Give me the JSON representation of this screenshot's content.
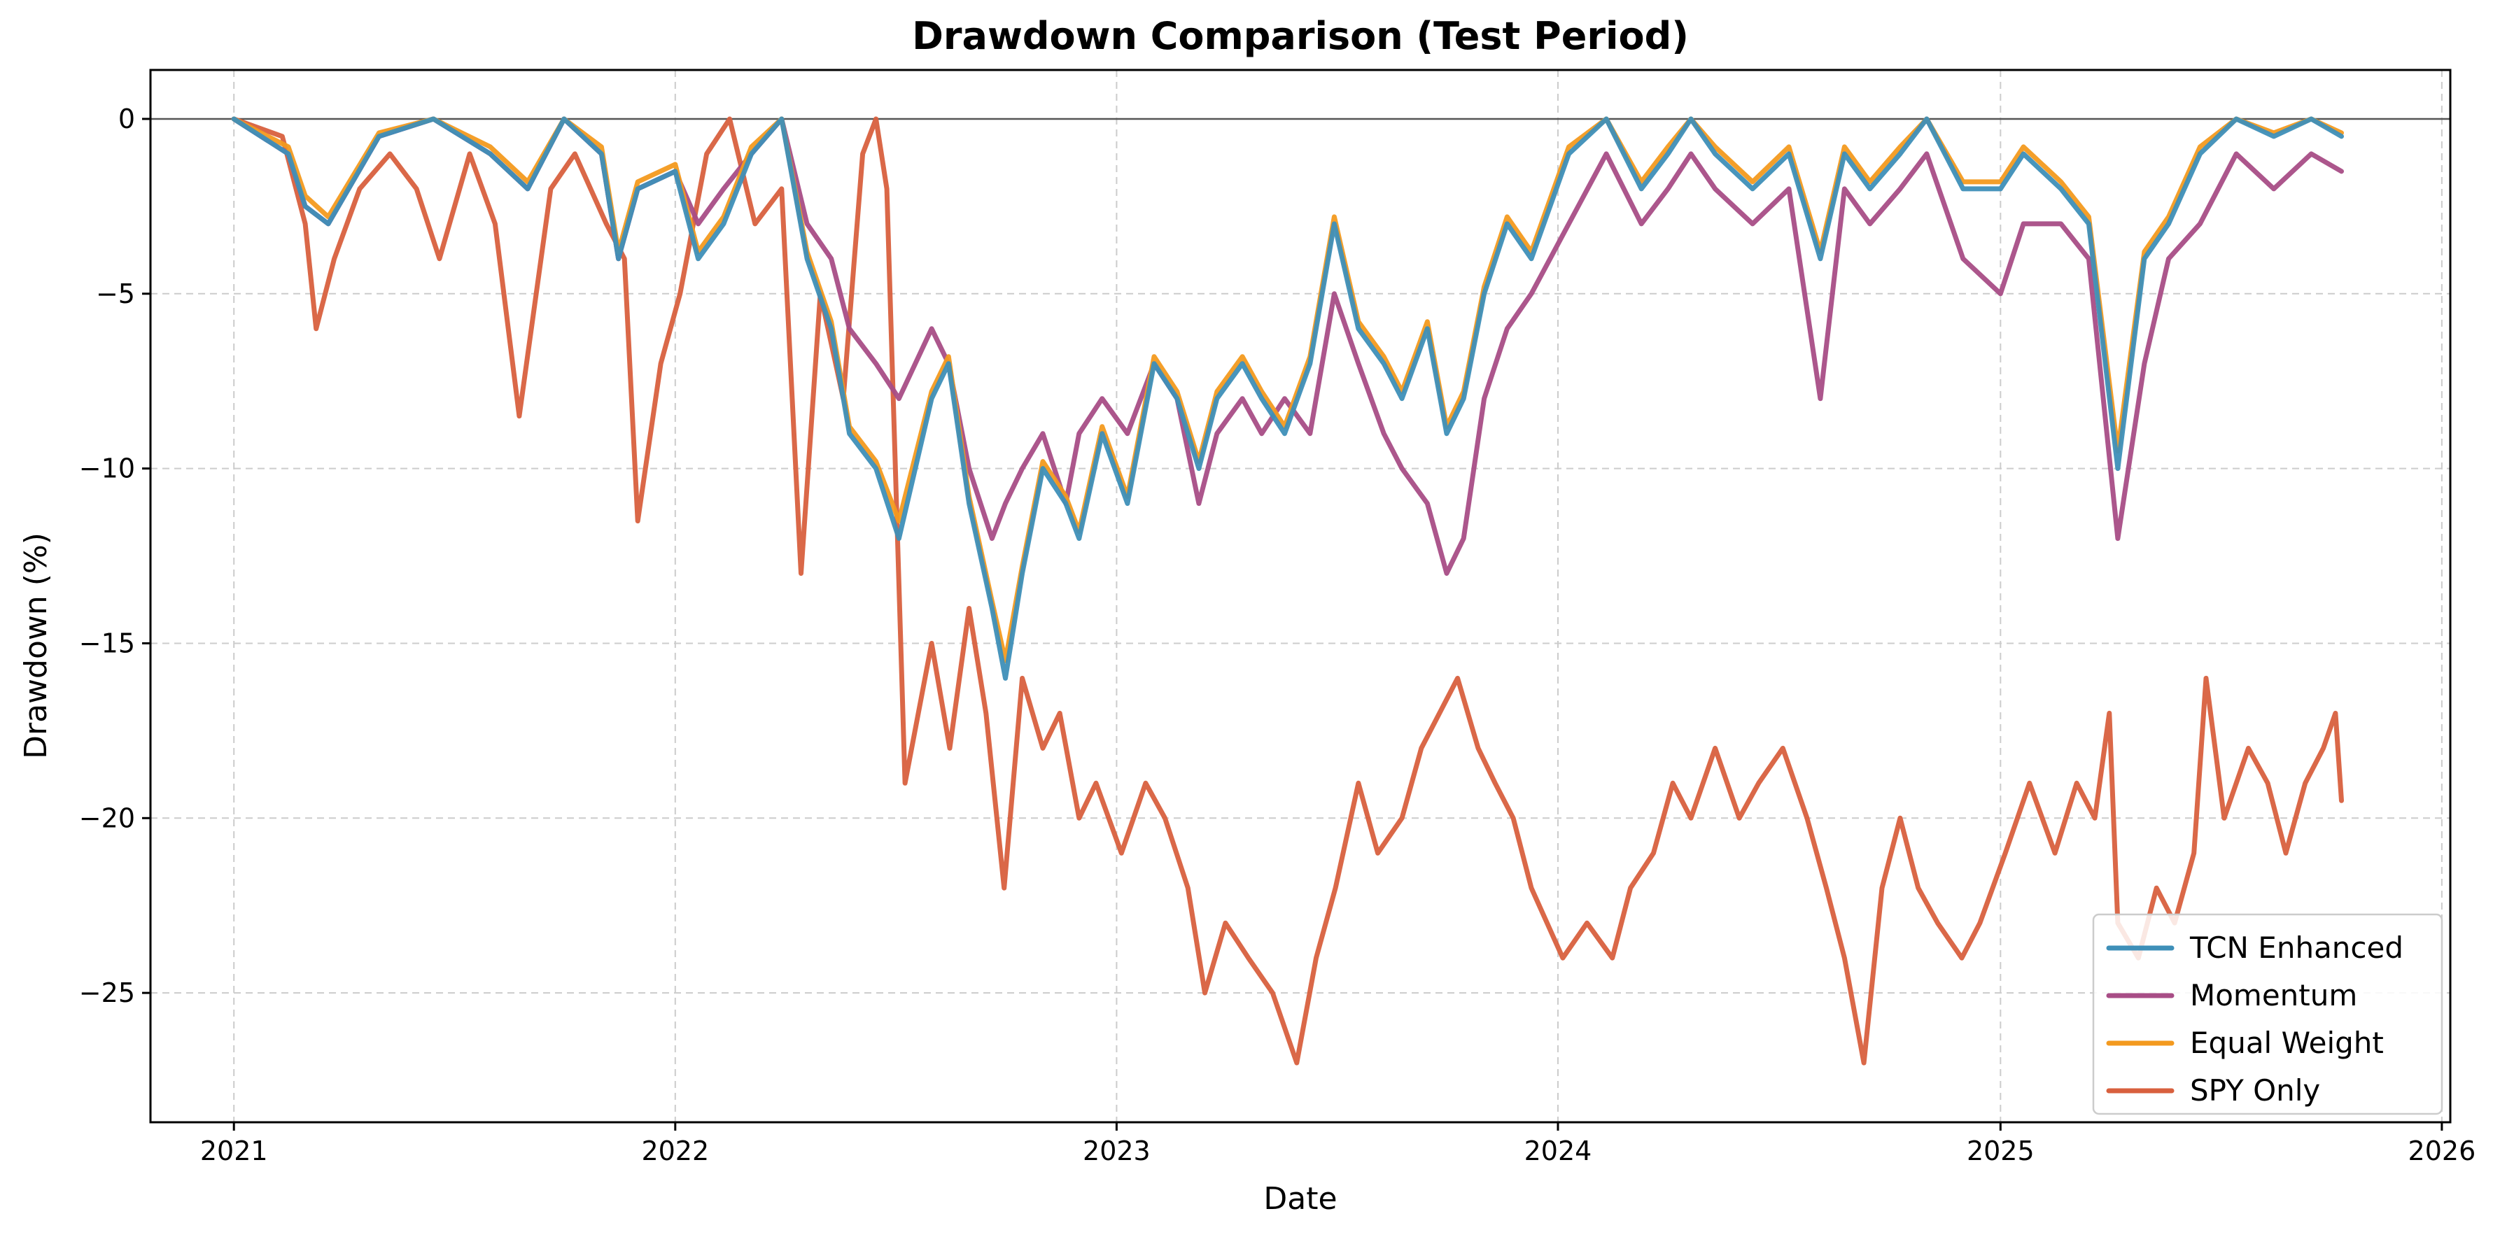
{
  "chart_data": {
    "type": "line",
    "title": "Drawdown Comparison (Test Period)",
    "xlabel": "Date",
    "ylabel": "Drawdown (%)",
    "xlim": [
      "2020-10-24",
      "2026-01-08"
    ],
    "ylim": [
      -28.7,
      1.4
    ],
    "x_ticks": [
      "2021",
      "2022",
      "2023",
      "2024",
      "2025",
      "2026"
    ],
    "y_ticks": [
      0,
      -5,
      -10,
      -15,
      -20,
      -25
    ],
    "y_tick_labels": [
      "0",
      "−5",
      "−10",
      "−15",
      "−20",
      "−25"
    ],
    "grid": true,
    "legend_position": "bottom-right",
    "zero_line": true,
    "series": [
      {
        "name": "TCN Enhanced",
        "color": "#3e8fb8",
        "x": [
          "2021-01-01",
          "2021-02-15",
          "2021-03-01",
          "2021-03-20",
          "2021-05-01",
          "2021-06-15",
          "2021-08-01",
          "2021-09-01",
          "2021-10-01",
          "2021-11-01",
          "2021-11-15",
          "2021-12-01",
          "2022-01-01",
          "2022-01-20",
          "2022-02-10",
          "2022-03-05",
          "2022-03-30",
          "2022-04-20",
          "2022-05-10",
          "2022-05-25",
          "2022-06-16",
          "2022-07-05",
          "2022-08-01",
          "2022-08-15",
          "2022-09-01",
          "2022-09-20",
          "2022-10-01",
          "2022-10-15",
          "2022-11-01",
          "2022-11-20",
          "2022-12-01",
          "2022-12-20",
          "2023-01-10",
          "2023-02-01",
          "2023-02-20",
          "2023-03-10",
          "2023-03-25",
          "2023-04-15",
          "2023-05-01",
          "2023-05-20",
          "2023-06-10",
          "2023-06-30",
          "2023-07-20",
          "2023-08-10",
          "2023-08-25",
          "2023-09-15",
          "2023-10-01",
          "2023-10-15",
          "2023-11-01",
          "2023-11-20",
          "2023-12-10",
          "2024-01-10",
          "2024-02-10",
          "2024-03-10",
          "2024-04-01",
          "2024-04-20",
          "2024-05-10",
          "2024-06-10",
          "2024-07-10",
          "2024-08-05",
          "2024-08-25",
          "2024-09-15",
          "2024-10-10",
          "2024-11-01",
          "2024-12-01",
          "2025-01-01",
          "2025-01-20",
          "2025-02-20",
          "2025-03-15",
          "2025-04-08",
          "2025-04-30",
          "2025-05-20",
          "2025-06-15",
          "2025-07-15",
          "2025-08-15",
          "2025-09-15",
          "2025-10-10"
        ],
        "values": [
          0,
          -1,
          -2.5,
          -3,
          -0.5,
          0,
          -1,
          -2,
          0,
          -1,
          -4,
          -2,
          -1.5,
          -4,
          -3,
          -1,
          0,
          -4,
          -6,
          -9,
          -10,
          -12,
          -8,
          -7,
          -11,
          -14,
          -16,
          -13,
          -10,
          -11,
          -12,
          -9,
          -11,
          -7,
          -8,
          -10,
          -8,
          -7,
          -8,
          -9,
          -7,
          -3,
          -6,
          -7,
          -8,
          -6,
          -9,
          -8,
          -5,
          -3,
          -4,
          -1,
          0,
          -2,
          -1,
          0,
          -1,
          -2,
          -1,
          -4,
          -1,
          -2,
          -1,
          0,
          -2,
          -2,
          -1,
          -2,
          -3,
          -10,
          -4,
          -3,
          -1,
          0,
          -0.5,
          0,
          -0.5
        ]
      },
      {
        "name": "Momentum",
        "color": "#a84d86",
        "x": [
          "2021-01-01",
          "2021-02-15",
          "2021-03-01",
          "2021-03-20",
          "2021-05-01",
          "2021-06-15",
          "2021-08-01",
          "2021-09-01",
          "2021-10-01",
          "2021-11-01",
          "2021-11-15",
          "2021-12-01",
          "2022-01-01",
          "2022-01-20",
          "2022-02-10",
          "2022-03-05",
          "2022-03-30",
          "2022-04-20",
          "2022-05-10",
          "2022-05-25",
          "2022-06-16",
          "2022-07-05",
          "2022-08-01",
          "2022-08-15",
          "2022-09-01",
          "2022-09-20",
          "2022-10-01",
          "2022-10-15",
          "2022-11-01",
          "2022-11-20",
          "2022-12-01",
          "2022-12-20",
          "2023-01-10",
          "2023-02-01",
          "2023-02-20",
          "2023-03-10",
          "2023-03-25",
          "2023-04-15",
          "2023-05-01",
          "2023-05-20",
          "2023-06-10",
          "2023-06-30",
          "2023-07-20",
          "2023-08-10",
          "2023-08-25",
          "2023-09-15",
          "2023-10-01",
          "2023-10-15",
          "2023-11-01",
          "2023-11-20",
          "2023-12-10",
          "2024-01-10",
          "2024-02-10",
          "2024-03-10",
          "2024-04-01",
          "2024-04-20",
          "2024-05-10",
          "2024-06-10",
          "2024-07-10",
          "2024-08-05",
          "2024-08-25",
          "2024-09-15",
          "2024-10-10",
          "2024-11-01",
          "2024-12-01",
          "2025-01-01",
          "2025-01-20",
          "2025-02-20",
          "2025-03-15",
          "2025-04-08",
          "2025-04-30",
          "2025-05-20",
          "2025-06-15",
          "2025-07-15",
          "2025-08-15",
          "2025-09-15",
          "2025-10-10"
        ],
        "values": [
          0,
          -1,
          -2.5,
          -3,
          -0.5,
          0,
          -1,
          -2,
          0,
          -1,
          -4,
          -2,
          -1.5,
          -3,
          -2,
          -1,
          0,
          -3,
          -4,
          -6,
          -7,
          -8,
          -6,
          -7,
          -10,
          -12,
          -11,
          -10,
          -9,
          -11,
          -9,
          -8,
          -9,
          -7,
          -8,
          -11,
          -9,
          -8,
          -9,
          -8,
          -9,
          -5,
          -7,
          -9,
          -10,
          -11,
          -13,
          -12,
          -8,
          -6,
          -5,
          -3,
          -1,
          -3,
          -2,
          -1,
          -2,
          -3,
          -2,
          -8,
          -2,
          -3,
          -2,
          -1,
          -4,
          -5,
          -3,
          -3,
          -4,
          -12,
          -7,
          -4,
          -3,
          -1,
          -2,
          -1,
          -1.5
        ]
      },
      {
        "name": "Equal Weight",
        "color": "#f39a1f",
        "x": [
          "2021-01-01",
          "2021-02-15",
          "2021-03-01",
          "2021-03-20",
          "2021-05-01",
          "2021-06-15",
          "2021-08-01",
          "2021-09-01",
          "2021-10-01",
          "2021-11-01",
          "2021-11-15",
          "2021-12-01",
          "2022-01-01",
          "2022-01-20",
          "2022-02-10",
          "2022-03-05",
          "2022-03-30",
          "2022-04-20",
          "2022-05-10",
          "2022-05-25",
          "2022-06-16",
          "2022-07-05",
          "2022-08-01",
          "2022-08-15",
          "2022-09-01",
          "2022-09-20",
          "2022-10-01",
          "2022-10-15",
          "2022-11-01",
          "2022-11-20",
          "2022-12-01",
          "2022-12-20",
          "2023-01-10",
          "2023-02-01",
          "2023-02-20",
          "2023-03-10",
          "2023-03-25",
          "2023-04-15",
          "2023-05-01",
          "2023-05-20",
          "2023-06-10",
          "2023-06-30",
          "2023-07-20",
          "2023-08-10",
          "2023-08-25",
          "2023-09-15",
          "2023-10-01",
          "2023-10-15",
          "2023-11-01",
          "2023-11-20",
          "2023-12-10",
          "2024-01-10",
          "2024-02-10",
          "2024-03-10",
          "2024-04-01",
          "2024-04-20",
          "2024-05-10",
          "2024-06-10",
          "2024-07-10",
          "2024-08-05",
          "2024-08-25",
          "2024-09-15",
          "2024-10-10",
          "2024-11-01",
          "2024-12-01",
          "2025-01-01",
          "2025-01-20",
          "2025-02-20",
          "2025-03-15",
          "2025-04-08",
          "2025-04-30",
          "2025-05-20",
          "2025-06-15",
          "2025-07-15",
          "2025-08-15",
          "2025-09-15",
          "2025-10-10"
        ],
        "values": [
          0,
          -0.8,
          -2.2,
          -2.8,
          -0.4,
          0,
          -0.8,
          -1.8,
          0,
          -0.8,
          -3.8,
          -1.8,
          -1.3,
          -3.8,
          -2.8,
          -0.8,
          0,
          -3.8,
          -5.8,
          -8.8,
          -9.8,
          -11.5,
          -7.8,
          -6.8,
          -10.8,
          -13.8,
          -15.5,
          -12.8,
          -9.8,
          -10.8,
          -11.8,
          -8.8,
          -10.8,
          -6.8,
          -7.8,
          -9.8,
          -7.8,
          -6.8,
          -7.8,
          -8.8,
          -6.8,
          -2.8,
          -5.8,
          -6.8,
          -7.8,
          -5.8,
          -8.8,
          -7.8,
          -4.8,
          -2.8,
          -3.8,
          -0.8,
          0,
          -1.8,
          -0.8,
          0,
          -0.8,
          -1.8,
          -0.8,
          -3.8,
          -0.8,
          -1.8,
          -0.8,
          0,
          -1.8,
          -1.8,
          -0.8,
          -1.8,
          -2.8,
          -9.5,
          -3.8,
          -2.8,
          -0.8,
          0,
          -0.4,
          0,
          -0.4
        ]
      },
      {
        "name": "SPY Only",
        "color": "#d8603e",
        "x": [
          "2021-01-01",
          "2021-02-10",
          "2021-03-01",
          "2021-03-10",
          "2021-03-25",
          "2021-04-15",
          "2021-05-10",
          "2021-06-01",
          "2021-06-20",
          "2021-07-15",
          "2021-08-05",
          "2021-08-25",
          "2021-09-20",
          "2021-10-10",
          "2021-11-05",
          "2021-11-20",
          "2021-12-01",
          "2021-12-20",
          "2022-01-05",
          "2022-01-27",
          "2022-02-15",
          "2022-03-08",
          "2022-03-30",
          "2022-04-15",
          "2022-05-01",
          "2022-05-20",
          "2022-06-05",
          "2022-06-16",
          "2022-06-25",
          "2022-07-10",
          "2022-08-01",
          "2022-08-16",
          "2022-09-01",
          "2022-09-15",
          "2022-09-30",
          "2022-10-15",
          "2022-11-01",
          "2022-11-15",
          "2022-12-01",
          "2022-12-15",
          "2023-01-05",
          "2023-01-25",
          "2023-02-10",
          "2023-03-01",
          "2023-03-15",
          "2023-04-01",
          "2023-04-20",
          "2023-05-10",
          "2023-05-30",
          "2023-06-15",
          "2023-07-01",
          "2023-07-20",
          "2023-08-05",
          "2023-08-25",
          "2023-09-10",
          "2023-09-25",
          "2023-10-10",
          "2023-10-27",
          "2023-11-10",
          "2023-11-25",
          "2023-12-10",
          "2024-01-05",
          "2024-01-25",
          "2024-02-15",
          "2024-03-01",
          "2024-03-20",
          "2024-04-05",
          "2024-04-20",
          "2024-05-10",
          "2024-05-30",
          "2024-06-15",
          "2024-07-05",
          "2024-07-25",
          "2024-08-10",
          "2024-08-25",
          "2024-09-10",
          "2024-09-25",
          "2024-10-10",
          "2024-10-25",
          "2024-11-10",
          "2024-11-30",
          "2024-12-15",
          "2025-01-05",
          "2025-01-25",
          "2025-02-15",
          "2025-03-05",
          "2025-03-20",
          "2025-04-01",
          "2025-04-08",
          "2025-04-25",
          "2025-05-10",
          "2025-05-25",
          "2025-06-10",
          "2025-06-20",
          "2025-07-05",
          "2025-07-25",
          "2025-08-10",
          "2025-08-25",
          "2025-09-10",
          "2025-09-25",
          "2025-10-05",
          "2025-10-10"
        ],
        "values": [
          0,
          -0.5,
          -3,
          -6,
          -4,
          -2,
          -1,
          -2,
          -4,
          -1,
          -3,
          -8.5,
          -2,
          -1,
          -3,
          -4,
          -11.5,
          -7,
          -5,
          -1,
          0,
          -3,
          -2,
          -13,
          -5,
          -8,
          -1,
          0,
          -2,
          -19,
          -15,
          -18,
          -14,
          -17,
          -22,
          -16,
          -18,
          -17,
          -20,
          -19,
          -21,
          -19,
          -20,
          -22,
          -25,
          -23,
          -24,
          -25,
          -27,
          -24,
          -22,
          -19,
          -21,
          -20,
          -18,
          -17,
          -16,
          -18,
          -19,
          -20,
          -22,
          -24,
          -23,
          -24,
          -22,
          -21,
          -19,
          -20,
          -18,
          -20,
          -19,
          -18,
          -20,
          -22,
          -24,
          -27,
          -22,
          -20,
          -22,
          -23,
          -24,
          -23,
          -21,
          -19,
          -21,
          -19,
          -20,
          -17,
          -23,
          -24,
          -22,
          -23,
          -21,
          -16,
          -20,
          -18,
          -19,
          -21,
          -19,
          -18,
          -17,
          -19.5
        ]
      }
    ]
  }
}
